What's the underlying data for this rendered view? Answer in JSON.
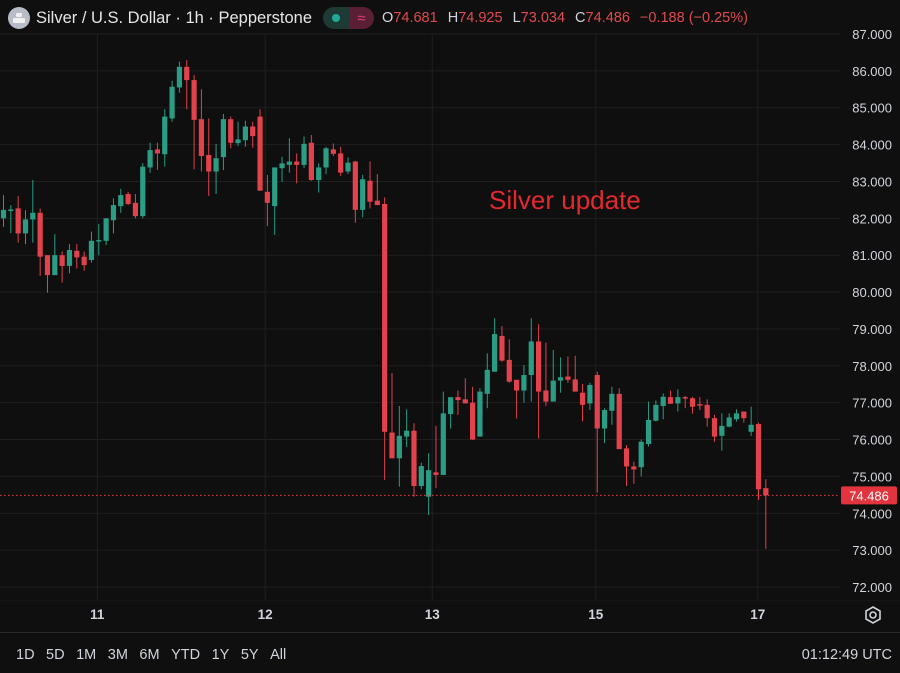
{
  "header": {
    "title": "Silver / U.S. Dollar · 1h · Pepperstone",
    "open_label": "O",
    "open": "74.681",
    "high_label": "H",
    "high": "74.925",
    "low_label": "L",
    "low": "73.034",
    "close_label": "C",
    "close": "74.486",
    "change": "−0.188 (−0.25%)",
    "market_status_icon": "green-dot-icon",
    "indicator_icon": "approx-wave-icon",
    "indicator_glyph": "≈"
  },
  "toolbar": {
    "ranges": [
      "1D",
      "5D",
      "1M",
      "3M",
      "6M",
      "YTD",
      "1Y",
      "5Y",
      "All"
    ],
    "clock": "01:12:49 UTC",
    "settings_icon": "gear-icon"
  },
  "colors": {
    "background": "#0f0f0f",
    "up": "#2a9d84",
    "down": "#e2424c",
    "annotation": "#e5282e",
    "grid": "#1f1f1f"
  },
  "chart_data": {
    "type": "candlestick",
    "title": "",
    "annotations": [
      "Silver update"
    ],
    "ylim": [
      72,
      87
    ],
    "y_ticks": [
      "87.000",
      "86.000",
      "85.000",
      "84.000",
      "83.000",
      "82.000",
      "81.000",
      "80.000",
      "79.000",
      "78.000",
      "77.000",
      "76.000",
      "75.000",
      "74.000",
      "73.000",
      "72.000"
    ],
    "x_ticks": [
      "11",
      "12",
      "13",
      "15",
      "17"
    ],
    "last_price": "74.486",
    "grid": true,
    "ohlc": [
      [
        82.0,
        82.63,
        81.77,
        82.23
      ],
      [
        82.2,
        82.36,
        81.6,
        82.24
      ],
      [
        82.27,
        82.6,
        81.34,
        81.59
      ],
      [
        81.59,
        82.22,
        81.3,
        81.97
      ],
      [
        81.97,
        83.04,
        81.34,
        82.15
      ],
      [
        82.15,
        82.27,
        80.44,
        80.96
      ],
      [
        81.0,
        81.0,
        79.98,
        80.46
      ],
      [
        80.46,
        81.57,
        80.46,
        81.0
      ],
      [
        81.0,
        81.1,
        80.26,
        80.71
      ],
      [
        80.71,
        81.3,
        80.51,
        81.14
      ],
      [
        81.12,
        81.3,
        80.64,
        80.94
      ],
      [
        80.96,
        81.1,
        80.58,
        80.73
      ],
      [
        80.87,
        81.64,
        80.8,
        81.39
      ],
      [
        81.38,
        81.85,
        81.0,
        81.41
      ],
      [
        81.39,
        82.0,
        81.28,
        82.0
      ],
      [
        81.95,
        82.54,
        81.59,
        82.36
      ],
      [
        82.33,
        82.8,
        82.15,
        82.63
      ],
      [
        82.66,
        82.72,
        82.36,
        82.39
      ],
      [
        82.42,
        82.66,
        82.0,
        82.06
      ],
      [
        82.06,
        83.5,
        82.0,
        83.4
      ],
      [
        83.38,
        84.05,
        83.24,
        83.85
      ],
      [
        83.87,
        84.05,
        83.31,
        83.76
      ],
      [
        83.74,
        84.96,
        83.4,
        84.76
      ],
      [
        84.71,
        85.73,
        84.62,
        85.57
      ],
      [
        85.55,
        86.25,
        85.41,
        86.11
      ],
      [
        86.11,
        86.29,
        84.96,
        85.75
      ],
      [
        85.75,
        85.89,
        83.33,
        84.67
      ],
      [
        84.69,
        85.5,
        83.27,
        83.69
      ],
      [
        83.72,
        84.71,
        82.61,
        83.27
      ],
      [
        83.27,
        84.02,
        82.66,
        83.63
      ],
      [
        83.66,
        84.83,
        83.31,
        84.69
      ],
      [
        84.69,
        84.76,
        83.9,
        84.05
      ],
      [
        84.04,
        84.62,
        83.96,
        84.14
      ],
      [
        84.12,
        84.65,
        83.94,
        84.49
      ],
      [
        84.49,
        84.62,
        83.92,
        84.23
      ],
      [
        84.76,
        84.96,
        82.75,
        82.75
      ],
      [
        82.72,
        83.18,
        81.79,
        82.42
      ],
      [
        82.33,
        83.38,
        81.55,
        83.38
      ],
      [
        83.36,
        83.67,
        82.99,
        83.49
      ],
      [
        83.45,
        84.17,
        83.24,
        83.54
      ],
      [
        83.54,
        83.76,
        82.95,
        83.45
      ],
      [
        83.45,
        84.22,
        83.36,
        84.02
      ],
      [
        84.05,
        84.26,
        83.02,
        83.04
      ],
      [
        83.04,
        83.49,
        82.7,
        83.38
      ],
      [
        83.38,
        83.94,
        83.2,
        83.9
      ],
      [
        83.87,
        84.03,
        83.69,
        83.75
      ],
      [
        83.76,
        83.94,
        83.15,
        83.24
      ],
      [
        83.27,
        83.65,
        83.2,
        83.51
      ],
      [
        83.54,
        83.56,
        81.88,
        82.23
      ],
      [
        82.23,
        83.18,
        82.03,
        83.06
      ],
      [
        83.02,
        83.54,
        82.27,
        82.45
      ],
      [
        82.48,
        83.2,
        82.36,
        82.36
      ],
      [
        82.39,
        82.57,
        74.9,
        76.21
      ],
      [
        76.19,
        77.8,
        75.49,
        75.49
      ],
      [
        75.49,
        76.91,
        74.72,
        76.1
      ],
      [
        76.08,
        76.82,
        75.8,
        76.24
      ],
      [
        76.24,
        76.44,
        74.45,
        74.74
      ],
      [
        74.74,
        75.37,
        74.65,
        75.28
      ],
      [
        74.45,
        75.63,
        73.95,
        75.17
      ],
      [
        75.11,
        76.37,
        74.68,
        75.04
      ],
      [
        75.04,
        77.3,
        75.04,
        76.71
      ],
      [
        76.69,
        77.15,
        76.3,
        77.15
      ],
      [
        77.15,
        77.33,
        76.67,
        77.07
      ],
      [
        77.09,
        77.66,
        76.98,
        76.98
      ],
      [
        77.0,
        77.43,
        75.99,
        76.0
      ],
      [
        76.08,
        77.39,
        76.08,
        77.3
      ],
      [
        77.24,
        78.34,
        76.85,
        77.89
      ],
      [
        77.84,
        79.29,
        77.84,
        78.86
      ],
      [
        78.81,
        79.08,
        78.11,
        78.14
      ],
      [
        78.16,
        78.72,
        77.54,
        77.57
      ],
      [
        77.62,
        77.62,
        76.57,
        77.33
      ],
      [
        77.33,
        78.02,
        77.0,
        77.75
      ],
      [
        77.75,
        79.29,
        77.03,
        78.66
      ],
      [
        78.66,
        79.13,
        76.03,
        77.3
      ],
      [
        77.33,
        78.63,
        76.91,
        77.03
      ],
      [
        77.03,
        78.43,
        77.03,
        77.6
      ],
      [
        77.6,
        78.23,
        77.27,
        77.69
      ],
      [
        77.71,
        78.25,
        77.54,
        77.62
      ],
      [
        77.63,
        78.27,
        77.3,
        77.3
      ],
      [
        77.27,
        77.51,
        76.49,
        76.94
      ],
      [
        76.98,
        77.54,
        76.8,
        77.48
      ],
      [
        77.75,
        77.84,
        74.56,
        76.3
      ],
      [
        76.3,
        76.85,
        75.9,
        76.8
      ],
      [
        76.78,
        77.43,
        76.4,
        77.24
      ],
      [
        77.24,
        77.39,
        75.74,
        75.74
      ],
      [
        75.76,
        75.85,
        74.74,
        75.27
      ],
      [
        75.27,
        75.4,
        74.8,
        75.19
      ],
      [
        75.25,
        76.0,
        75.0,
        75.94
      ],
      [
        75.88,
        77.03,
        75.81,
        76.53
      ],
      [
        76.51,
        77.06,
        76.49,
        76.94
      ],
      [
        76.91,
        77.25,
        76.55,
        77.16
      ],
      [
        77.15,
        77.33,
        76.97,
        76.97
      ],
      [
        76.98,
        77.36,
        76.76,
        77.15
      ],
      [
        77.15,
        77.18,
        76.85,
        77.11
      ],
      [
        77.12,
        77.16,
        76.7,
        76.89
      ],
      [
        76.96,
        77.15,
        76.8,
        76.93
      ],
      [
        76.94,
        77.09,
        76.35,
        76.58
      ],
      [
        76.58,
        76.67,
        75.94,
        76.08
      ],
      [
        76.1,
        76.71,
        75.7,
        76.37
      ],
      [
        76.35,
        76.71,
        76.33,
        76.6
      ],
      [
        76.55,
        76.82,
        76.49,
        76.71
      ],
      [
        76.76,
        76.76,
        76.46,
        76.58
      ],
      [
        76.21,
        76.89,
        76.1,
        76.4
      ],
      [
        76.42,
        76.46,
        74.36,
        74.65
      ],
      [
        74.681,
        74.925,
        73.034,
        74.486
      ]
    ]
  }
}
